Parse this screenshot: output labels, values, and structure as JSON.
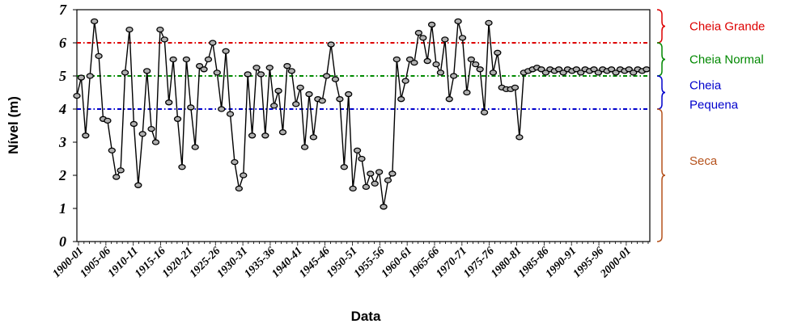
{
  "chart_data": {
    "type": "line",
    "title": "",
    "xlabel": "Data",
    "ylabel": "Nível (m)",
    "ylim": [
      0,
      7
    ],
    "yticks": [
      "0",
      "1",
      "2",
      "3",
      "4",
      "5",
      "6",
      "7"
    ],
    "xticks": [
      "1900-01",
      "1905-06",
      "1910-11",
      "1915-16",
      "1920-21",
      "1925-26",
      "1930-31",
      "1935-36",
      "1940-41",
      "1945-46",
      "1950-51",
      "1955-56",
      "1960-61",
      "1965-66",
      "1970-71",
      "1975-76",
      "1980-81",
      "1985-86",
      "1990-91",
      "1995-96",
      "2000-01"
    ],
    "grid": false,
    "series": [
      {
        "color": "#000000",
        "x": [
          1900.0,
          1900.8,
          1901.6,
          1902.4,
          1903.2,
          1904.0,
          1904.8,
          1905.6,
          1906.4,
          1907.2,
          1908.0,
          1908.8,
          1909.6,
          1910.4,
          1911.2,
          1912.0,
          1912.8,
          1913.6,
          1914.4,
          1915.2,
          1916.0,
          1916.8,
          1917.6,
          1918.4,
          1919.2,
          1920.0,
          1920.8,
          1921.6,
          1922.4,
          1923.2,
          1924.0,
          1924.8,
          1925.6,
          1926.4,
          1927.2,
          1928.0,
          1928.8,
          1929.6,
          1930.4,
          1931.2,
          1932.0,
          1932.8,
          1933.6,
          1934.4,
          1935.2,
          1936.0,
          1936.8,
          1937.6,
          1938.4,
          1939.2,
          1940.0,
          1940.8,
          1941.6,
          1942.4,
          1943.2,
          1944.0,
          1944.8,
          1945.6,
          1946.4,
          1947.2,
          1948.0,
          1948.8,
          1949.6,
          1950.4,
          1951.2,
          1952.0,
          1952.8,
          1953.6,
          1954.4,
          1955.2,
          1956.0,
          1956.8,
          1957.6,
          1958.4,
          1959.2,
          1960.0,
          1960.8,
          1961.6,
          1962.4,
          1963.2,
          1964.0,
          1964.8,
          1965.6,
          1966.4,
          1967.2,
          1968.0,
          1968.8,
          1969.6,
          1970.4,
          1971.2,
          1972.0,
          1972.8,
          1973.6,
          1974.4,
          1975.2,
          1976.0,
          1976.8,
          1977.6,
          1978.4,
          1979.2,
          1980.0,
          1980.8,
          1981.6,
          1982.4,
          1983.2,
          1984.0,
          1984.8,
          1985.6,
          1986.4,
          1987.2,
          1988.0,
          1988.8,
          1989.6,
          1990.4,
          1991.2,
          1992.0,
          1992.8,
          1993.6,
          1994.4,
          1995.2,
          1996.0,
          1996.8,
          1997.6,
          1998.4,
          1999.2,
          2000.0,
          2000.8,
          2001.6,
          2002.4,
          2003.2,
          2004.0
        ],
        "y": [
          4.4,
          4.95,
          3.2,
          5.0,
          6.65,
          5.6,
          3.7,
          3.65,
          2.75,
          1.95,
          2.15,
          5.1,
          6.4,
          3.55,
          1.7,
          3.25,
          5.15,
          3.4,
          3.0,
          6.4,
          6.1,
          4.2,
          5.5,
          3.7,
          2.25,
          5.5,
          4.05,
          2.85,
          5.3,
          5.2,
          5.5,
          6.0,
          5.1,
          4.0,
          5.75,
          3.85,
          2.4,
          1.6,
          2.0,
          5.05,
          3.2,
          5.25,
          5.05,
          3.2,
          5.25,
          4.1,
          4.55,
          3.3,
          5.3,
          5.15,
          4.15,
          4.65,
          2.85,
          4.45,
          3.15,
          4.3,
          4.25,
          5.0,
          5.95,
          4.9,
          4.3,
          2.25,
          4.45,
          1.6,
          2.75,
          2.5,
          1.65,
          2.05,
          1.75,
          2.1,
          1.05,
          1.85,
          2.05,
          5.5,
          4.3,
          4.85,
          5.5,
          5.4,
          6.3,
          6.15,
          5.45,
          6.55,
          5.35,
          5.1,
          6.1,
          4.3,
          5.0,
          6.65,
          6.15,
          4.5,
          5.5,
          5.35,
          5.2,
          3.9,
          6.6,
          5.1,
          5.7,
          4.65,
          4.6,
          4.6,
          4.65,
          3.15,
          5.1,
          5.15,
          5.2,
          5.25,
          5.2,
          5.1,
          5.2,
          5.15,
          5.2,
          5.1,
          5.2,
          5.15,
          5.2,
          5.1,
          5.2,
          5.15,
          5.2,
          5.1,
          5.2,
          5.15,
          5.2,
          5.1,
          5.2,
          5.15,
          5.2,
          5.1,
          5.2,
          5.15,
          5.2
        ]
      }
    ],
    "thresholds": [
      {
        "value": 6.0,
        "color": "#dd0000"
      },
      {
        "value": 5.0,
        "color": "#008800"
      },
      {
        "value": 4.0,
        "color": "#0000cc"
      }
    ],
    "bands": [
      {
        "label": "Cheia Grande",
        "from": 6.0,
        "to": 7.0,
        "color": "#dd0000"
      },
      {
        "label": "Cheia Normal",
        "from": 5.0,
        "to": 6.0,
        "color": "#008800"
      },
      {
        "label": "Cheia Pequena",
        "from": 4.0,
        "to": 5.0,
        "color": "#0000cc"
      },
      {
        "label": "Seca",
        "from": 0.0,
        "to": 4.0,
        "color": "#b5521c"
      }
    ]
  }
}
